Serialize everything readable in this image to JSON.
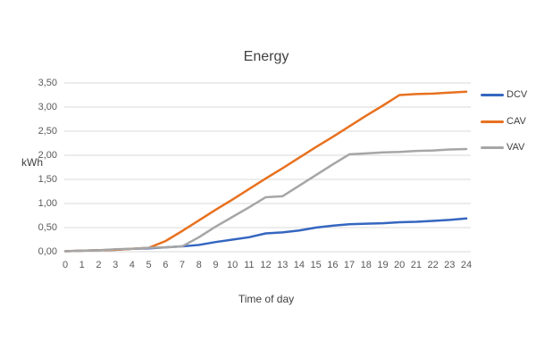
{
  "chart": {
    "title": "Energy",
    "xlabel": "Time of day",
    "ylabel": "kWh"
  },
  "chart_data": {
    "type": "line",
    "title": "Energy",
    "xlabel": "Time of day",
    "ylabel": "kWh",
    "x": [
      0,
      1,
      2,
      3,
      4,
      5,
      6,
      7,
      8,
      9,
      10,
      11,
      12,
      13,
      14,
      15,
      16,
      17,
      18,
      19,
      20,
      21,
      22,
      23,
      24
    ],
    "xtick_labels": [
      "0",
      "1",
      "2",
      "3",
      "4",
      "5",
      "6",
      "7",
      "8",
      "9",
      "10",
      "11",
      "12",
      "13",
      "14",
      "15",
      "16",
      "17",
      "18",
      "19",
      "20",
      "21",
      "22",
      "23",
      "24"
    ],
    "ytick_values": [
      0,
      0.5,
      1,
      1.5,
      2,
      2.5,
      3,
      3.5
    ],
    "ytick_labels": [
      "0,00",
      "0,50",
      "1,00",
      "1,50",
      "2,00",
      "2,50",
      "3,00",
      "3,50"
    ],
    "ylim": [
      0,
      3.5
    ],
    "xlim": [
      0,
      24
    ],
    "grid": "horizontal",
    "gridline_color": "#d9d9d9",
    "legend_position": "right",
    "series": [
      {
        "name": "DCV",
        "color": "#3566c0",
        "values": [
          0.01,
          0.02,
          0.03,
          0.04,
          0.06,
          0.07,
          0.09,
          0.11,
          0.14,
          0.2,
          0.25,
          0.3,
          0.38,
          0.4,
          0.44,
          0.5,
          0.54,
          0.57,
          0.58,
          0.59,
          0.61,
          0.62,
          0.64,
          0.66,
          0.69
        ]
      },
      {
        "name": "CAV",
        "color": "#e8711f",
        "values": [
          0.01,
          0.02,
          0.03,
          0.04,
          0.06,
          0.08,
          0.22,
          0.43,
          0.65,
          0.87,
          1.08,
          1.3,
          1.52,
          1.73,
          1.95,
          2.17,
          2.38,
          2.6,
          2.82,
          3.03,
          3.25,
          3.27,
          3.28,
          3.3,
          3.32
        ]
      },
      {
        "name": "VAV",
        "color": "#a6a6a6",
        "values": [
          0.01,
          0.02,
          0.03,
          0.05,
          0.06,
          0.08,
          0.09,
          0.11,
          0.3,
          0.52,
          0.72,
          0.92,
          1.13,
          1.15,
          1.37,
          1.59,
          1.81,
          2.02,
          2.04,
          2.06,
          2.07,
          2.09,
          2.1,
          2.12,
          2.13
        ]
      }
    ]
  }
}
